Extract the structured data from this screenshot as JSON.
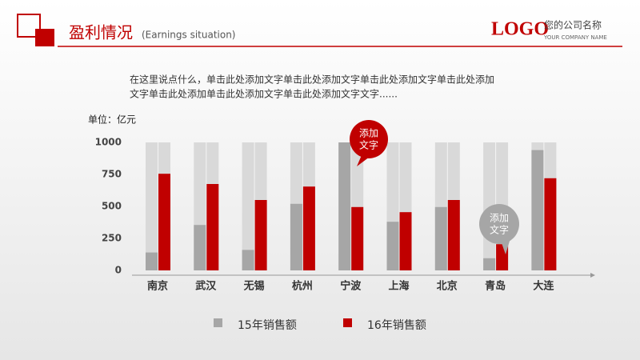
{
  "header": {
    "title": "盈利情况",
    "subtitle": "(Earnings situation)",
    "logo": "LOGO",
    "company": "您的公司名称",
    "company_en": "YOUR COMPANY NAME"
  },
  "intro": [
    "在这里说点什么，单击此处添加文字单击此处添加文字单击此处添加文字单击此处添加",
    "文字单击此处添加单击此处添加文字单击此处添加文字文字......"
  ],
  "chart_data": {
    "type": "bar",
    "y_label": "单位：亿元",
    "categories": [
      "南京",
      "武汉",
      "无锡",
      "杭州",
      "宁波",
      "上海",
      "北京",
      "青岛",
      "大连"
    ],
    "series": [
      {
        "name": "15年销售额",
        "color": "#a6a6a6",
        "values": [
          140,
          355,
          160,
          520,
          1000,
          380,
          495,
          95,
          940
        ]
      },
      {
        "name": "16年销售额",
        "color": "#c00000",
        "values": [
          755,
          675,
          550,
          655,
          495,
          455,
          550,
          205,
          720
        ]
      }
    ],
    "ylim": [
      0,
      1000
    ],
    "yticks": [
      0,
      250,
      500,
      750,
      1000
    ],
    "annotations": [
      [
        "添加",
        "文字"
      ],
      [
        "添加",
        "文字"
      ]
    ]
  }
}
